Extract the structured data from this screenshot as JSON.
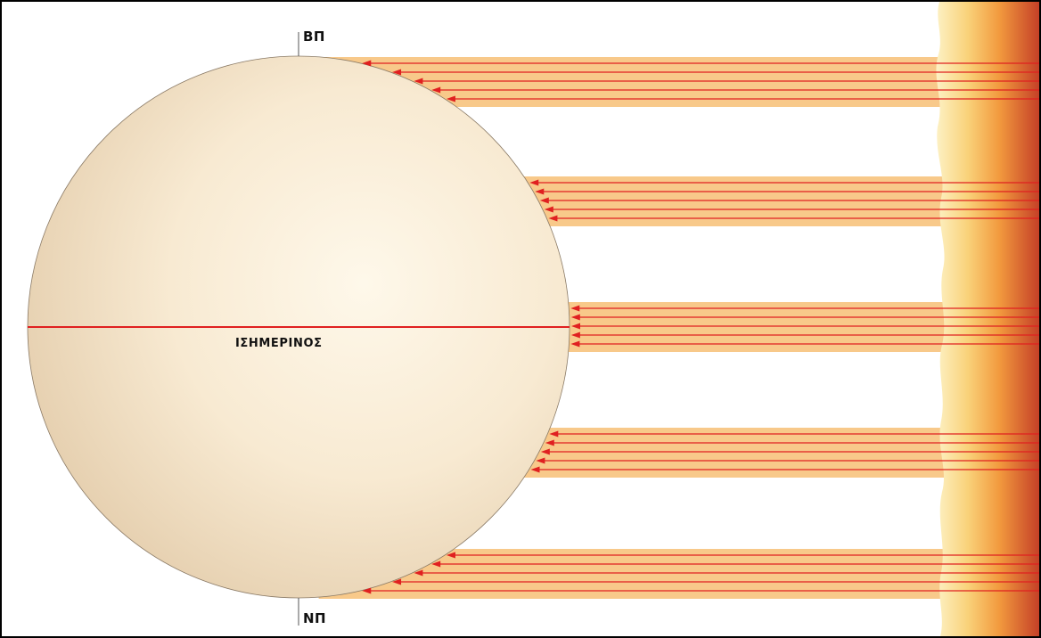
{
  "labels": {
    "north_pole": "ΒΠ",
    "south_pole": "ΝΠ",
    "equator": "ΙΣΗΜΕΡΙΝΟΣ"
  },
  "colors": {
    "globe_light": "#fdf4e3",
    "globe_dark": "#ead6b8",
    "beam": "#f8c98a",
    "ray": "#e02020",
    "equator_line": "#e02020",
    "sun_light": "#fbe7a6",
    "sun_mid": "#f4a640",
    "sun_dark": "#c8412a"
  }
}
